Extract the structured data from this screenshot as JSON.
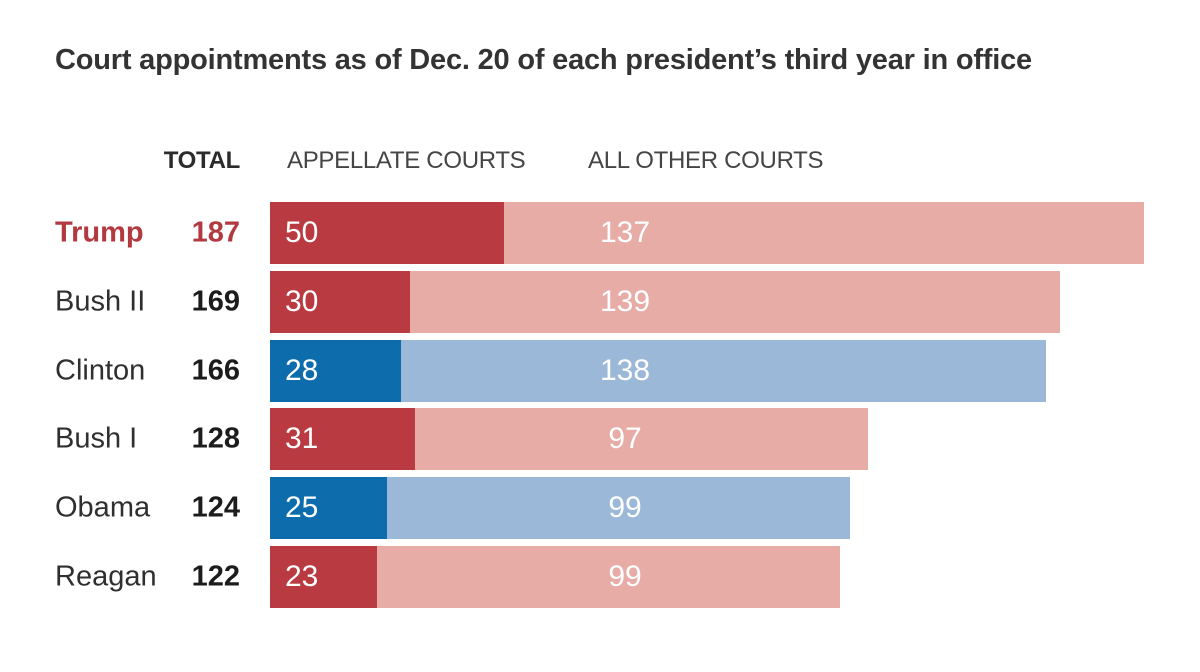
{
  "title": "Court appointments as of Dec. 20 of each president’s third year in office",
  "columns": {
    "total": "TOTAL",
    "appellate": "APPELLATE COURTS",
    "other": "ALL OTHER COURTS"
  },
  "colors": {
    "republican_dark": "#ba3a41",
    "republican_light": "#e7aca6",
    "democrat_dark": "#0d6dac",
    "democrat_light": "#9cb8d8",
    "highlight_text": "#b23940",
    "title_text": "#333333",
    "bar_value_text": "#ffffff"
  },
  "chart_data": {
    "type": "bar",
    "orientation": "horizontal",
    "stacked": true,
    "title": "Court appointments as of Dec. 20 of each president’s third year in office",
    "categories": [
      "Trump",
      "Bush II",
      "Clinton",
      "Bush I",
      "Obama",
      "Reagan"
    ],
    "series": [
      {
        "name": "Appellate courts",
        "values": [
          50,
          30,
          28,
          31,
          25,
          23
        ]
      },
      {
        "name": "All other courts",
        "values": [
          137,
          139,
          138,
          97,
          99,
          99
        ]
      }
    ],
    "totals": [
      187,
      169,
      166,
      128,
      124,
      122
    ],
    "party": [
      "R",
      "R",
      "D",
      "R",
      "D",
      "R"
    ],
    "highlight": "Trump",
    "xlim": [
      0,
      187
    ],
    "grid": false,
    "legend_position": "column-headers"
  }
}
